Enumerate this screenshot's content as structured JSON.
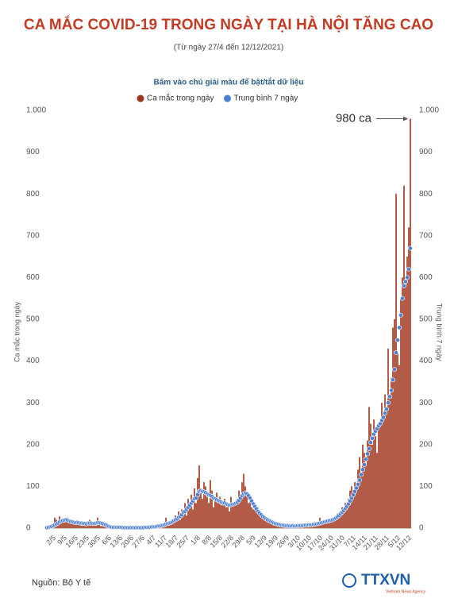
{
  "chart_data": {
    "type": "bar",
    "title": "CA MẮC COVID-19 TRONG NGÀY TẠI HÀ NỘI TĂNG CAO",
    "subtitle": "(Từ ngày 27/4 đến 12/12/2021)",
    "legend_hint": "Bấm vào chú giải màu để bật/tắt dữ liệu",
    "y_label": "Ca mắc trong ngày",
    "y2_label": "Trung bình 7 ngày",
    "annotation": {
      "text": "980 ca",
      "index": 229
    },
    "source": "Nguồn: Bộ Y tế",
    "logo": "TTXVN",
    "logo_sub": "Vietnam News Agency",
    "grid": false,
    "ylim": [
      0,
      1000
    ],
    "yticks": [
      0,
      100,
      200,
      300,
      400,
      500,
      600,
      700,
      800,
      900,
      {
        "value": 1000,
        "label": "1.000"
      }
    ],
    "y2lim": [
      0,
      1000
    ],
    "y2ticks": [
      0,
      100,
      200,
      300,
      400,
      500,
      600,
      700,
      800,
      900,
      {
        "value": 1000,
        "label": "1.000"
      }
    ],
    "categories": [
      null,
      null,
      null,
      null,
      null,
      "2/5",
      null,
      null,
      null,
      null,
      null,
      null,
      "9/5",
      null,
      null,
      null,
      null,
      null,
      null,
      "16/5",
      null,
      null,
      null,
      null,
      null,
      null,
      "23/5",
      null,
      null,
      null,
      null,
      null,
      null,
      "30/5",
      null,
      null,
      null,
      null,
      null,
      null,
      "6/6",
      null,
      null,
      null,
      null,
      null,
      null,
      "13/6",
      null,
      null,
      null,
      null,
      null,
      null,
      "20/6",
      null,
      null,
      null,
      null,
      null,
      null,
      "27/6",
      null,
      null,
      null,
      null,
      null,
      null,
      "4/7",
      null,
      null,
      null,
      null,
      null,
      null,
      "11/7",
      null,
      null,
      null,
      null,
      null,
      null,
      "18/7",
      null,
      null,
      null,
      null,
      null,
      null,
      "25/7",
      null,
      null,
      null,
      null,
      null,
      null,
      "1/8",
      null,
      null,
      null,
      null,
      null,
      null,
      "8/8",
      null,
      null,
      null,
      null,
      null,
      null,
      "15/8",
      null,
      null,
      null,
      null,
      null,
      null,
      "22/8",
      null,
      null,
      null,
      null,
      null,
      null,
      "29/8",
      null,
      null,
      null,
      null,
      null,
      null,
      "5/9",
      null,
      null,
      null,
      null,
      null,
      null,
      "12/9",
      null,
      null,
      null,
      null,
      null,
      null,
      "19/9",
      null,
      null,
      null,
      null,
      null,
      null,
      "26/9",
      null,
      null,
      null,
      null,
      null,
      null,
      "3/10",
      null,
      null,
      null,
      null,
      null,
      null,
      "10/10",
      null,
      null,
      null,
      null,
      null,
      null,
      "17/10",
      null,
      null,
      null,
      null,
      null,
      null,
      "24/10",
      null,
      null,
      null,
      null,
      null,
      null,
      "31/10",
      null,
      null,
      null,
      null,
      null,
      null,
      "7/11",
      null,
      null,
      null,
      null,
      null,
      null,
      "14/11",
      null,
      null,
      null,
      null,
      null,
      null,
      "21/11",
      null,
      null,
      null,
      null,
      null,
      null,
      "28/11",
      null,
      null,
      null,
      null,
      null,
      null,
      "5/12",
      null,
      null,
      null,
      null,
      null,
      null,
      "12/12"
    ],
    "series": [
      {
        "name": "Ca mắc trong ngày",
        "type": "bar",
        "color": "#a0341c",
        "values": [
          0,
          1,
          3,
          5,
          10,
          25,
          20,
          15,
          28,
          18,
          22,
          15,
          18,
          25,
          12,
          20,
          10,
          15,
          8,
          12,
          18,
          10,
          6,
          12,
          8,
          5,
          15,
          20,
          10,
          8,
          12,
          6,
          25,
          10,
          5,
          8,
          4,
          6,
          3,
          2,
          3,
          1,
          2,
          0,
          4,
          2,
          1,
          3,
          0,
          2,
          1,
          0,
          2,
          1,
          3,
          0,
          1,
          2,
          0,
          1,
          2,
          0,
          3,
          1,
          2,
          4,
          3,
          6,
          2,
          5,
          8,
          4,
          10,
          6,
          12,
          25,
          8,
          15,
          10,
          20,
          18,
          30,
          25,
          40,
          20,
          45,
          35,
          60,
          30,
          70,
          55,
          80,
          45,
          95,
          60,
          120,
          150,
          90,
          70,
          110,
          100,
          75,
          60,
          115,
          90,
          50,
          70,
          85,
          60,
          75,
          55,
          65,
          70,
          50,
          60,
          40,
          75,
          60,
          55,
          65,
          70,
          90,
          80,
          110,
          130,
          100,
          85,
          60,
          75,
          50,
          45,
          60,
          40,
          50,
          30,
          35,
          25,
          30,
          20,
          15,
          20,
          15,
          10,
          18,
          8,
          12,
          6,
          10,
          5,
          8,
          4,
          6,
          3,
          8,
          5,
          10,
          4,
          6,
          3,
          5,
          8,
          4,
          6,
          10,
          5,
          12,
          8,
          6,
          10,
          15,
          10,
          8,
          25,
          15,
          12,
          20,
          18,
          15,
          12,
          20,
          25,
          22,
          30,
          35,
          28,
          40,
          50,
          45,
          60,
          55,
          70,
          90,
          100,
          80,
          110,
          95,
          140,
          170,
          130,
          200,
          180,
          150,
          210,
          290,
          250,
          200,
          260,
          220,
          180,
          240,
          250,
          300,
          270,
          320,
          280,
          430,
          310,
          360,
          480,
          500,
          800,
          420,
          390,
          550,
          600,
          820,
          580,
          650,
          720,
          980
        ]
      },
      {
        "name": "Trung bình 7 ngày",
        "type": "dots",
        "axis": "y2",
        "color": "#4a7fd4",
        "values": [
          1,
          2,
          3,
          4,
          6,
          8,
          10,
          12,
          15,
          17,
          18,
          19,
          20,
          19,
          17,
          16,
          15,
          14,
          13,
          14,
          13,
          12,
          12,
          11,
          11,
          10,
          12,
          12,
          12,
          11,
          11,
          12,
          13,
          13,
          12,
          11,
          9,
          8,
          6,
          4,
          3,
          2,
          2,
          2,
          2,
          2,
          2,
          2,
          1,
          1,
          1,
          1,
          1,
          1,
          1,
          1,
          1,
          1,
          1,
          1,
          1,
          1,
          2,
          2,
          2,
          2,
          3,
          3,
          3,
          4,
          5,
          5,
          6,
          7,
          8,
          10,
          11,
          12,
          13,
          15,
          18,
          20,
          22,
          26,
          28,
          32,
          38,
          40,
          45,
          50,
          55,
          60,
          65,
          70,
          72,
          80,
          88,
          90,
          88,
          87,
          85,
          82,
          80,
          78,
          76,
          72,
          70,
          68,
          66,
          64,
          62,
          60,
          60,
          58,
          56,
          55,
          56,
          57,
          58,
          60,
          62,
          66,
          72,
          78,
          82,
          84,
          82,
          78,
          72,
          65,
          58,
          52,
          46,
          40,
          36,
          32,
          28,
          25,
          22,
          20,
          18,
          16,
          14,
          12,
          11,
          10,
          9,
          8,
          7,
          7,
          6,
          6,
          6,
          5,
          5,
          6,
          5,
          5,
          6,
          6,
          6,
          6,
          7,
          7,
          7,
          8,
          8,
          8,
          9,
          9,
          10,
          11,
          12,
          13,
          14,
          15,
          16,
          17,
          18,
          19,
          20,
          22,
          24,
          27,
          30,
          34,
          38,
          42,
          47,
          52,
          58,
          65,
          72,
          80,
          88,
          96,
          105,
          115,
          128,
          140,
          152,
          165,
          178,
          190,
          205,
          215,
          225,
          232,
          238,
          245,
          250,
          258,
          265,
          275,
          285,
          300,
          315,
          330,
          355,
          380,
          420,
          450,
          480,
          510,
          550,
          580,
          590,
          600,
          620,
          670
        ]
      }
    ]
  }
}
